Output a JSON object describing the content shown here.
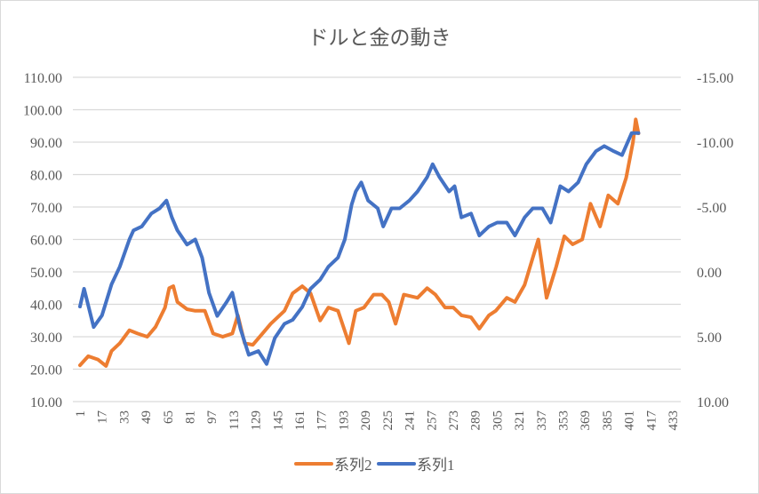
{
  "chart_data": {
    "type": "line",
    "title": "ドルと金の動き",
    "xlabel": "",
    "ylabel": "",
    "x_ticks": [
      1,
      17,
      33,
      49,
      65,
      81,
      97,
      113,
      129,
      145,
      161,
      177,
      193,
      209,
      225,
      241,
      257,
      273,
      289,
      305,
      321,
      337,
      353,
      369,
      385,
      401,
      417,
      433
    ],
    "xlim": [
      1,
      433
    ],
    "ylim_left": [
      10,
      110
    ],
    "y_ticks_left": [
      "10.00",
      "20.00",
      "30.00",
      "40.00",
      "50.00",
      "60.00",
      "70.00",
      "80.00",
      "90.00",
      "100.00",
      "110.00"
    ],
    "ylim_right": [
      -15,
      10
    ],
    "right_axis_reversed": true,
    "y_ticks_right": [
      "-15.00",
      "-10.00",
      "-5.00",
      "0.00",
      "5.00",
      "10.00"
    ],
    "grid": true,
    "legend_position": "bottom",
    "series": [
      {
        "name": "系列2",
        "color": "#ED7D31",
        "axis": "left",
        "x": [
          1,
          7,
          14,
          20,
          24,
          30,
          37,
          43,
          50,
          56,
          63,
          66,
          69,
          72,
          79,
          85,
          92,
          98,
          105,
          112,
          116,
          121,
          127,
          134,
          140,
          150,
          156,
          163,
          169,
          176,
          182,
          189,
          197,
          202,
          208,
          215,
          221,
          226,
          231,
          237,
          247,
          254,
          260,
          267,
          273,
          279,
          286,
          292,
          299,
          304,
          312,
          318,
          325,
          331,
          335,
          341,
          348,
          354,
          360,
          367,
          373,
          380,
          386,
          393,
          399,
          404,
          406,
          408
        ],
        "values": [
          21.2,
          24,
          23,
          21,
          25.6,
          28,
          32,
          31,
          30,
          33,
          39,
          45,
          45.6,
          40.7,
          38.5,
          38,
          38,
          31,
          30,
          31,
          36.6,
          28,
          27.5,
          31,
          34,
          38,
          43.4,
          45.6,
          43.4,
          35,
          39,
          38,
          28,
          38,
          39,
          43,
          43,
          40.7,
          34,
          43,
          42,
          45,
          43,
          39,
          39,
          36.6,
          36,
          32.5,
          36.6,
          38,
          42,
          40.7,
          46,
          54.4,
          60,
          42,
          51.6,
          61,
          58.5,
          60,
          71,
          64,
          73.6,
          71,
          79,
          90,
          97,
          92.7
        ]
      },
      {
        "name": "系列1",
        "color": "#4472C4",
        "axis": "right",
        "x": [
          1,
          4,
          11,
          17,
          24,
          30,
          37,
          40,
          46,
          53,
          59,
          64,
          68,
          72,
          79,
          85,
          90,
          95,
          101,
          108,
          112,
          118,
          124,
          131,
          137,
          143,
          150,
          156,
          163,
          169,
          176,
          182,
          189,
          194,
          199,
          202,
          206,
          211,
          218,
          222,
          228,
          234,
          241,
          247,
          254,
          258,
          263,
          270,
          274,
          279,
          286,
          292,
          299,
          305,
          312,
          318,
          325,
          331,
          338,
          344,
          351,
          357,
          364,
          370,
          377,
          383,
          390,
          396,
          403,
          408
        ],
        "values": [
          2.67,
          1.3,
          4.25,
          3.36,
          0.96,
          -0.4,
          -2.5,
          -3.2,
          -3.5,
          -4.5,
          -4.9,
          -5.5,
          -4.2,
          -3.2,
          -2.1,
          -2.5,
          -1.1,
          1.6,
          3.4,
          2.3,
          1.6,
          4.4,
          6.4,
          6.1,
          7.1,
          5.1,
          4.0,
          3.7,
          2.7,
          1.3,
          0.6,
          -0.4,
          -1.1,
          -2.5,
          -5.2,
          -6.2,
          -6.9,
          -5.5,
          -4.9,
          -3.5,
          -4.9,
          -4.9,
          -5.5,
          -6.2,
          -7.3,
          -8.3,
          -7.3,
          -6.2,
          -6.6,
          -4.2,
          -4.5,
          -2.8,
          -3.5,
          -3.8,
          -3.8,
          -2.8,
          -4.2,
          -4.9,
          -4.9,
          -3.8,
          -6.6,
          -6.2,
          -6.9,
          -8.3,
          -9.3,
          -9.7,
          -9.3,
          -9.0,
          -10.7,
          -10.7
        ]
      }
    ],
    "legend": [
      "系列2",
      "系列1"
    ]
  }
}
